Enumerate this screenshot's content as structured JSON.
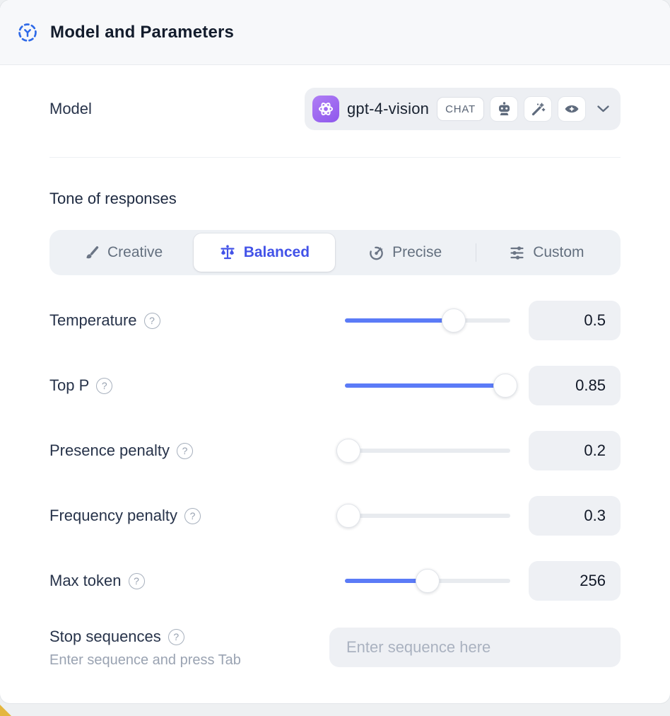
{
  "header": {
    "title": "Model and Parameters"
  },
  "model": {
    "label": "Model",
    "selected": "gpt-4-vision",
    "type_badge": "CHAT",
    "capability_icons": [
      "robot",
      "magic-wand",
      "vision-eye"
    ]
  },
  "tone": {
    "heading": "Tone of responses",
    "options": [
      {
        "label": "Creative",
        "icon": "paintbrush-icon",
        "selected": false
      },
      {
        "label": "Balanced",
        "icon": "balance-scale-icon",
        "selected": true
      },
      {
        "label": "Precise",
        "icon": "target-icon",
        "selected": false
      },
      {
        "label": "Custom",
        "icon": "sliders-icon",
        "selected": false
      }
    ]
  },
  "parameters": [
    {
      "label": "Temperature",
      "value": "0.5",
      "percent": 66
    },
    {
      "label": "Top P",
      "value": "0.85",
      "percent": 97
    },
    {
      "label": "Presence penalty",
      "value": "0.2",
      "percent": 2
    },
    {
      "label": "Frequency penalty",
      "value": "0.3",
      "percent": 2
    },
    {
      "label": "Max token",
      "value": "256",
      "percent": 50
    }
  ],
  "stop_sequences": {
    "label": "Stop sequences",
    "hint": "Enter sequence and press Tab",
    "placeholder": "Enter sequence here"
  },
  "help_glyph": "?",
  "colors": {
    "accent_blue": "#4353e8",
    "slider_blue": "#5b7bf7",
    "header_icon_blue": "#2f6ae8",
    "model_avatar_purple": "#9b6bf0",
    "header_bg": "#f7f8fa",
    "control_bg": "#eef0f4",
    "corner_accent_yellow": "#e4b63e"
  }
}
